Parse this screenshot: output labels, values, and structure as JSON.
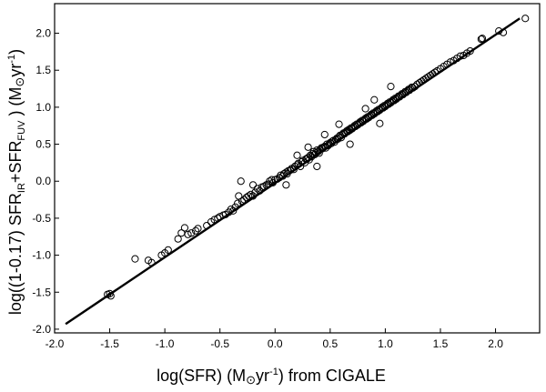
{
  "chart_data": {
    "type": "scatter",
    "title": "",
    "xlabel": {
      "prefix": "log(SFR) (M",
      "sun": "⊙",
      "mid": "yr",
      "exp": "-1",
      "suffix": ") from CIGALE"
    },
    "ylabel": {
      "prefix": "log((1-0.17) SFR",
      "sub1": "IR",
      "plus": "+SFR",
      "sub2": "FUV",
      "mid": " )  (M",
      "sun": "⊙",
      "yr": "yr",
      "exp": "-1",
      "suffix": ")"
    },
    "xlim": [
      -2.0,
      2.4
    ],
    "ylim": [
      -2.05,
      2.4
    ],
    "x_ticks": [
      "-2.0",
      "-1.5",
      "-1.0",
      "-0.5",
      "0.0",
      "0.5",
      "1.0",
      "1.5",
      "2.0"
    ],
    "y_ticks": [
      "-2.0",
      "-1.5",
      "-1.0",
      "-0.5",
      "0.0",
      "0.5",
      "1.0",
      "1.5",
      "2.0"
    ],
    "grid": false,
    "fit_line": {
      "x": [
        -1.9,
        2.22
      ],
      "y": [
        -1.93,
        2.2
      ]
    },
    "points": [
      [
        -1.52,
        -1.53
      ],
      [
        -1.5,
        -1.52
      ],
      [
        -1.49,
        -1.55
      ],
      [
        -1.27,
        -1.05
      ],
      [
        -1.15,
        -1.07
      ],
      [
        -1.12,
        -1.1
      ],
      [
        -1.03,
        -1.0
      ],
      [
        -1.0,
        -0.97
      ],
      [
        -0.97,
        -0.93
      ],
      [
        -0.88,
        -0.78
      ],
      [
        -0.85,
        -0.7
      ],
      [
        -0.82,
        -0.63
      ],
      [
        -0.79,
        -0.72
      ],
      [
        -0.76,
        -0.7
      ],
      [
        -0.72,
        -0.67
      ],
      [
        -0.7,
        -0.64
      ],
      [
        -0.62,
        -0.6
      ],
      [
        -0.58,
        -0.55
      ],
      [
        -0.55,
        -0.52
      ],
      [
        -0.52,
        -0.5
      ],
      [
        -0.5,
        -0.48
      ],
      [
        -0.47,
        -0.46
      ],
      [
        -0.45,
        -0.45
      ],
      [
        -0.42,
        -0.42
      ],
      [
        -0.4,
        -0.38
      ],
      [
        -0.38,
        -0.4
      ],
      [
        -0.36,
        -0.35
      ],
      [
        -0.34,
        -0.3
      ],
      [
        -0.33,
        -0.2
      ],
      [
        -0.31,
        0.0
      ],
      [
        -0.3,
        -0.27
      ],
      [
        -0.28,
        -0.25
      ],
      [
        -0.26,
        -0.22
      ],
      [
        -0.24,
        -0.2
      ],
      [
        -0.22,
        -0.18
      ],
      [
        -0.2,
        -0.2
      ],
      [
        -0.18,
        -0.15
      ],
      [
        -0.16,
        -0.1
      ],
      [
        -0.14,
        -0.13
      ],
      [
        -0.12,
        -0.08
      ],
      [
        -0.1,
        -0.07
      ],
      [
        -0.08,
        -0.05
      ],
      [
        -0.06,
        -0.04
      ],
      [
        -0.05,
        0.0
      ],
      [
        -0.03,
        0.02
      ],
      [
        -0.02,
        -0.02
      ],
      [
        0.0,
        0.02
      ],
      [
        0.02,
        0.03
      ],
      [
        0.04,
        0.05
      ],
      [
        0.05,
        0.08
      ],
      [
        0.07,
        0.07
      ],
      [
        0.08,
        0.1
      ],
      [
        0.1,
        0.12
      ],
      [
        0.11,
        0.1
      ],
      [
        0.12,
        0.14
      ],
      [
        0.14,
        0.15
      ],
      [
        0.15,
        0.17
      ],
      [
        0.17,
        0.16
      ],
      [
        0.18,
        0.2
      ],
      [
        0.2,
        0.22
      ],
      [
        0.21,
        0.24
      ],
      [
        0.23,
        0.2
      ],
      [
        0.24,
        0.26
      ],
      [
        0.25,
        0.28
      ],
      [
        0.27,
        0.25
      ],
      [
        0.28,
        0.3
      ],
      [
        0.29,
        0.3
      ],
      [
        0.3,
        0.32
      ],
      [
        0.31,
        0.29
      ],
      [
        0.32,
        0.35
      ],
      [
        0.33,
        0.33
      ],
      [
        0.34,
        0.37
      ],
      [
        0.35,
        0.4
      ],
      [
        0.36,
        0.36
      ],
      [
        0.37,
        0.38
      ],
      [
        0.38,
        0.42
      ],
      [
        0.39,
        0.4
      ],
      [
        0.4,
        0.38
      ],
      [
        0.41,
        0.43
      ],
      [
        0.42,
        0.45
      ],
      [
        0.43,
        0.44
      ],
      [
        0.44,
        0.46
      ],
      [
        0.45,
        0.47
      ],
      [
        0.46,
        0.45
      ],
      [
        0.47,
        0.5
      ],
      [
        0.48,
        0.48
      ],
      [
        0.49,
        0.5
      ],
      [
        0.5,
        0.52
      ],
      [
        0.51,
        0.51
      ],
      [
        0.52,
        0.54
      ],
      [
        0.53,
        0.55
      ],
      [
        0.54,
        0.53
      ],
      [
        0.55,
        0.56
      ],
      [
        0.56,
        0.58
      ],
      [
        0.57,
        0.57
      ],
      [
        0.58,
        0.6
      ],
      [
        0.59,
        0.62
      ],
      [
        0.6,
        0.59
      ],
      [
        0.61,
        0.63
      ],
      [
        0.62,
        0.65
      ],
      [
        0.63,
        0.64
      ],
      [
        0.64,
        0.66
      ],
      [
        0.65,
        0.68
      ],
      [
        0.66,
        0.67
      ],
      [
        0.67,
        0.7
      ],
      [
        0.68,
        0.69
      ],
      [
        0.69,
        0.72
      ],
      [
        0.7,
        0.71
      ],
      [
        0.71,
        0.73
      ],
      [
        0.72,
        0.75
      ],
      [
        0.73,
        0.74
      ],
      [
        0.74,
        0.77
      ],
      [
        0.75,
        0.76
      ],
      [
        0.76,
        0.78
      ],
      [
        0.77,
        0.8
      ],
      [
        0.78,
        0.79
      ],
      [
        0.79,
        0.82
      ],
      [
        0.8,
        0.81
      ],
      [
        0.81,
        0.83
      ],
      [
        0.82,
        0.85
      ],
      [
        0.83,
        0.84
      ],
      [
        0.84,
        0.87
      ],
      [
        0.85,
        0.86
      ],
      [
        0.86,
        0.88
      ],
      [
        0.87,
        0.9
      ],
      [
        0.88,
        0.89
      ],
      [
        0.89,
        0.92
      ],
      [
        0.9,
        0.91
      ],
      [
        0.91,
        0.93
      ],
      [
        0.92,
        0.95
      ],
      [
        0.93,
        0.94
      ],
      [
        0.94,
        0.97
      ],
      [
        0.95,
        0.96
      ],
      [
        0.96,
        0.98
      ],
      [
        0.97,
        1.0
      ],
      [
        0.98,
        0.99
      ],
      [
        0.99,
        1.02
      ],
      [
        1.0,
        1.01
      ],
      [
        1.01,
        1.03
      ],
      [
        1.02,
        1.05
      ],
      [
        1.03,
        1.04
      ],
      [
        1.04,
        1.07
      ],
      [
        1.05,
        1.06
      ],
      [
        1.06,
        1.08
      ],
      [
        1.07,
        1.1
      ],
      [
        1.08,
        1.09
      ],
      [
        1.09,
        1.12
      ],
      [
        1.1,
        1.11
      ],
      [
        1.11,
        1.13
      ],
      [
        1.12,
        1.15
      ],
      [
        1.13,
        1.14
      ],
      [
        1.14,
        1.16
      ],
      [
        1.15,
        1.18
      ],
      [
        1.16,
        1.17
      ],
      [
        1.17,
        1.19
      ],
      [
        1.18,
        1.21
      ],
      [
        1.19,
        1.2
      ],
      [
        1.2,
        1.22
      ],
      [
        1.21,
        1.24
      ],
      [
        1.22,
        1.23
      ],
      [
        1.23,
        1.25
      ],
      [
        1.24,
        1.27
      ],
      [
        1.25,
        1.26
      ],
      [
        1.27,
        1.28
      ],
      [
        1.29,
        1.31
      ],
      [
        1.31,
        1.33
      ],
      [
        1.33,
        1.35
      ],
      [
        1.35,
        1.37
      ],
      [
        1.37,
        1.39
      ],
      [
        1.39,
        1.41
      ],
      [
        1.41,
        1.43
      ],
      [
        1.43,
        1.45
      ],
      [
        1.45,
        1.47
      ],
      [
        1.47,
        1.49
      ],
      [
        1.5,
        1.52
      ],
      [
        1.53,
        1.55
      ],
      [
        1.56,
        1.58
      ],
      [
        1.59,
        1.61
      ],
      [
        1.62,
        1.63
      ],
      [
        1.65,
        1.66
      ],
      [
        1.68,
        1.69
      ],
      [
        1.71,
        1.7
      ],
      [
        1.74,
        1.73
      ],
      [
        1.77,
        1.76
      ],
      [
        1.87,
        1.92
      ],
      [
        1.88,
        1.93
      ],
      [
        2.03,
        2.03
      ],
      [
        2.07,
        2.01
      ],
      [
        2.27,
        2.2
      ],
      [
        0.58,
        0.77
      ],
      [
        0.45,
        0.63
      ],
      [
        0.2,
        0.35
      ],
      [
        0.9,
        1.1
      ],
      [
        1.05,
        1.28
      ],
      [
        -0.2,
        -0.05
      ],
      [
        0.95,
        0.78
      ],
      [
        0.68,
        0.5
      ],
      [
        0.1,
        -0.05
      ],
      [
        0.82,
        0.98
      ],
      [
        0.38,
        0.2
      ],
      [
        0.3,
        0.46
      ]
    ]
  }
}
